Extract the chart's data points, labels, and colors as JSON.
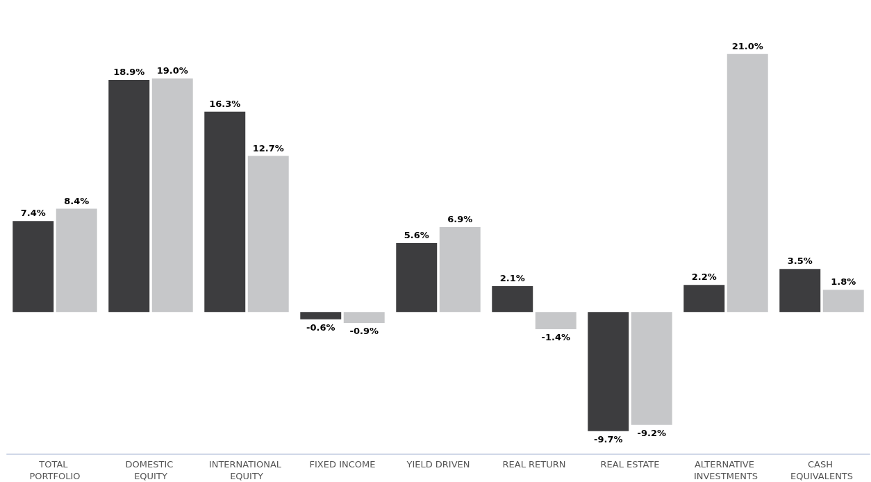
{
  "chart_data": {
    "type": "bar",
    "categories": [
      "TOTAL PORTFOLIO",
      "DOMESTIC EQUITY",
      "INTERNATIONAL EQUITY",
      "FIXED INCOME",
      "YIELD DRIVEN",
      "REAL RETURN",
      "REAL ESTATE",
      "ALTERNATIVE INVESTMENTS",
      "CASH EQUIVALENTS"
    ],
    "series": [
      {
        "color": "#3d3d3f",
        "values": [
          7.4,
          18.9,
          16.3,
          -0.6,
          5.6,
          2.1,
          -9.7,
          2.2,
          3.5
        ],
        "value_labels": [
          "7.4%",
          "18.9%",
          "16.3%",
          "-0.6%",
          "5.6%",
          "2.1%",
          "-9.7%",
          "2.2%",
          "3.5%"
        ]
      },
      {
        "color": "#c6c7c9",
        "values": [
          8.4,
          19.0,
          12.7,
          -0.9,
          6.9,
          -1.4,
          -9.2,
          21.0,
          1.8
        ],
        "value_labels": [
          "8.4%",
          "19.0%",
          "12.7%",
          "-0.9%",
          "6.9%",
          "-1.4%",
          "-9.2%",
          "21.0%",
          "1.8%"
        ]
      }
    ],
    "tick_labels": "x",
    "grid": false
  }
}
